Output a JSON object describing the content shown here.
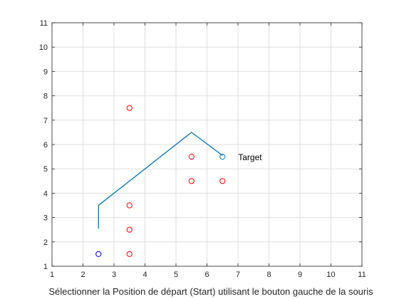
{
  "chart_data": {
    "type": "scatter",
    "title": "",
    "xlabel": "Sélectionner la Position de départ (Start) utilisant le bouton gauche de la souris",
    "ylabel": "",
    "xlim": [
      1,
      11
    ],
    "ylim": [
      1,
      11
    ],
    "xticks": [
      1,
      2,
      3,
      4,
      5,
      6,
      7,
      8,
      9,
      10,
      11
    ],
    "yticks": [
      1,
      2,
      3,
      4,
      5,
      6,
      7,
      8,
      9,
      10,
      11
    ],
    "grid": true,
    "series": [
      {
        "type": "scatter",
        "marker": "circle-open",
        "color": "#ff0000",
        "points": [
          [
            3.5,
            7.5
          ],
          [
            5.5,
            5.5
          ],
          [
            5.5,
            4.5
          ],
          [
            6.5,
            4.5
          ],
          [
            3.5,
            3.5
          ],
          [
            3.5,
            2.5
          ],
          [
            3.5,
            1.5
          ]
        ]
      },
      {
        "type": "scatter",
        "marker": "circle-open",
        "color": "#0000ff",
        "points": [
          [
            2.5,
            1.5
          ]
        ]
      },
      {
        "type": "line",
        "color": "#0072bd",
        "points": [
          [
            2.5,
            2.55
          ],
          [
            2.5,
            3.5
          ],
          [
            5.5,
            6.5
          ],
          [
            6.5,
            5.55
          ]
        ]
      },
      {
        "type": "scatter",
        "marker": "circle-open",
        "color": "#0072bd",
        "points": [
          [
            6.5,
            5.5
          ]
        ]
      }
    ],
    "annotations": [
      {
        "text": "Target",
        "x": 6.5,
        "y": 5.5
      }
    ]
  }
}
